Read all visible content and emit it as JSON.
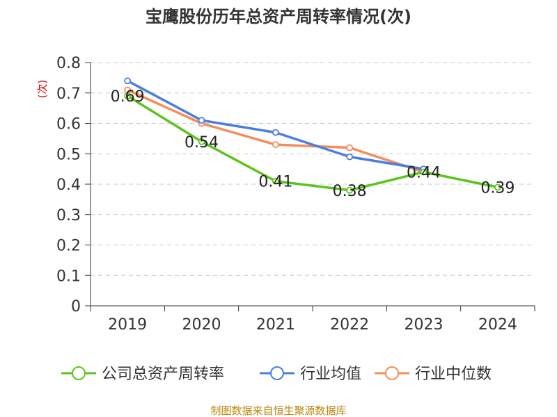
{
  "chart_data": {
    "type": "line",
    "title": "宝鹰股份历年总资产周转率情况(次)",
    "ylabel": "(次)",
    "xlabel": "",
    "categories": [
      "2019",
      "2020",
      "2021",
      "2022",
      "2023",
      "2024"
    ],
    "ylim": [
      0,
      0.8
    ],
    "yticks": [
      "0",
      "0.1",
      "0.2",
      "0.3",
      "0.4",
      "0.5",
      "0.6",
      "0.7",
      "0.8"
    ],
    "grid": true,
    "legend_position": "bottom",
    "series": [
      {
        "name": "公司总资产周转率",
        "color": "#5cc41c",
        "values": [
          0.69,
          0.54,
          0.41,
          0.38,
          0.44,
          0.39
        ],
        "labels": [
          "0.69",
          "0.54",
          "0.41",
          "0.38",
          "0.44",
          "0.39"
        ]
      },
      {
        "name": "行业均值",
        "color": "#4a7ee0",
        "values": [
          0.74,
          0.61,
          0.57,
          0.49,
          0.45,
          null
        ]
      },
      {
        "name": "行业中位数",
        "color": "#f58c5a",
        "values": [
          0.71,
          0.6,
          0.53,
          0.52,
          0.44,
          null
        ]
      }
    ],
    "source": "制图数据来自恒生聚源数据库"
  }
}
